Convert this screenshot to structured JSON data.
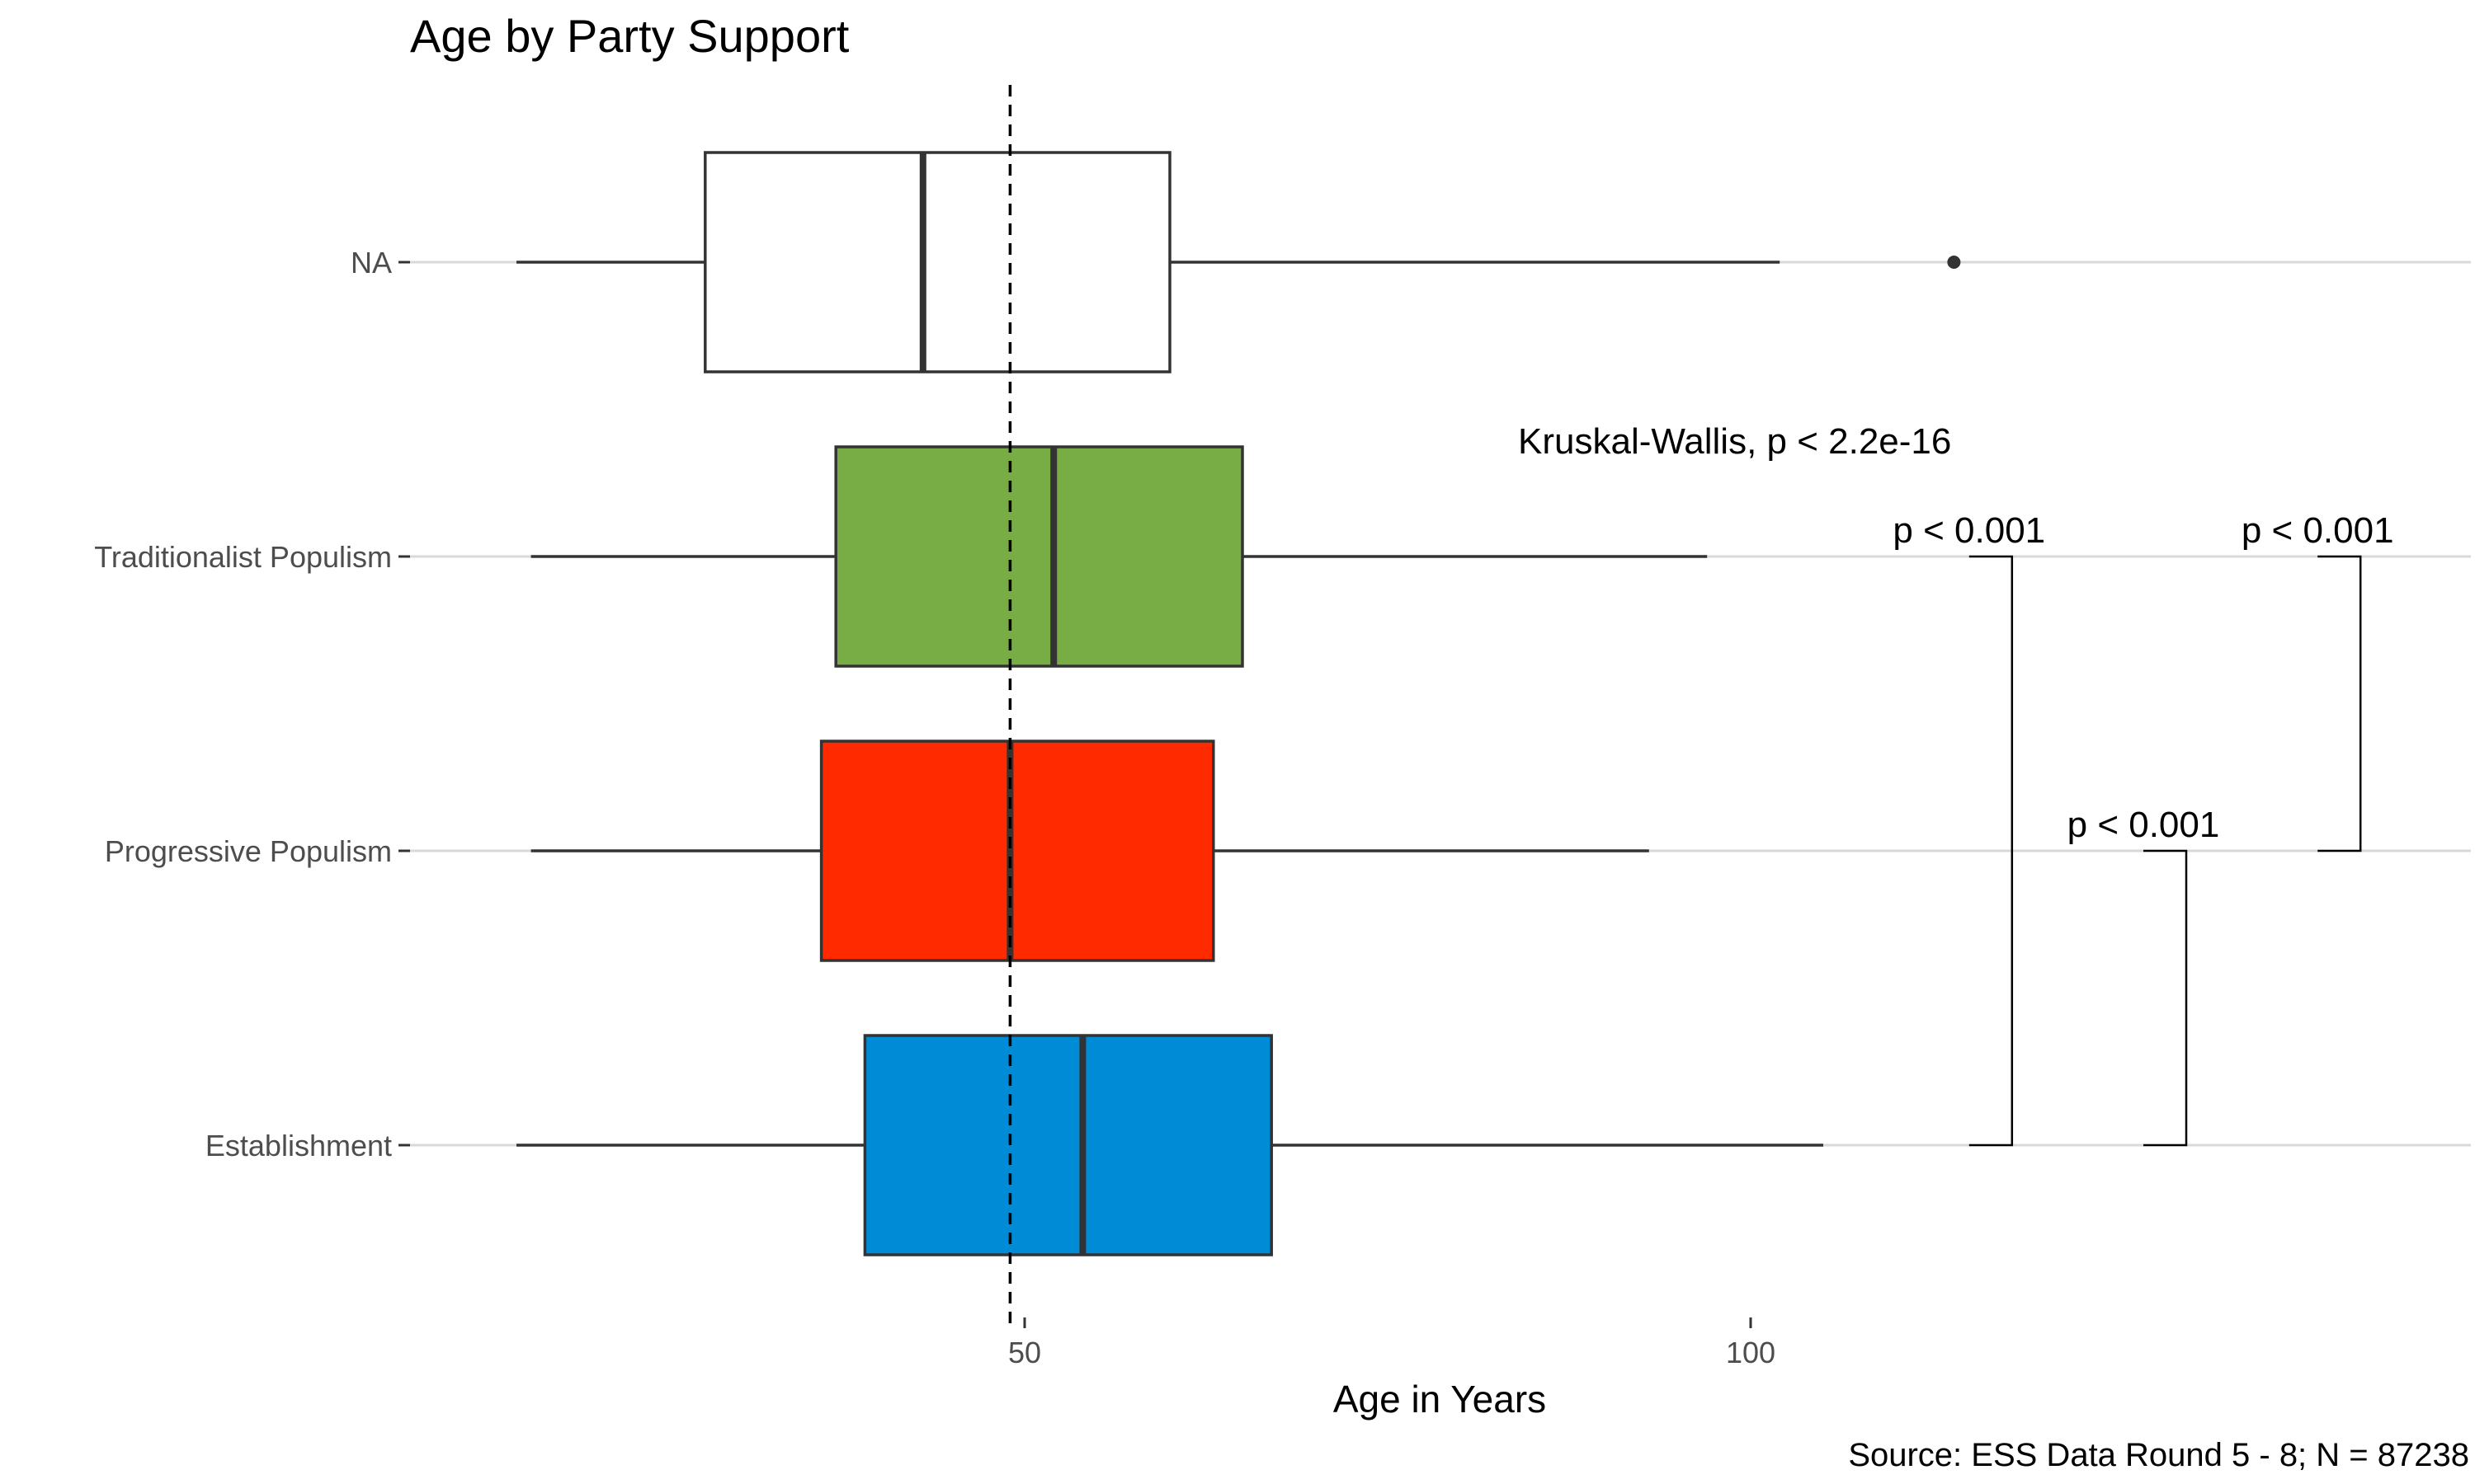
{
  "chart_data": {
    "type": "boxplot",
    "orientation": "horizontal",
    "title": "Age by Party Support",
    "xlabel": "Age in Years",
    "ylabel": "",
    "caption": "Source: ESS Data Round 5 - 8; N = 87238",
    "xlim": [
      0,
      150
    ],
    "x_ticks": [
      50,
      100
    ],
    "x_tick_labels": [
      "50",
      "100"
    ],
    "reference_line": {
      "x": 49,
      "style": "dashed"
    },
    "grid": "horizontal major lines only",
    "legend": "none",
    "categories": [
      "NA",
      "Traditionalist Populism",
      "Progressive Populism",
      "Establishment"
    ],
    "boxes": [
      {
        "category": "NA",
        "whisker_low": 15,
        "q1": 28,
        "median": 43,
        "q3": 60,
        "whisker_high": 102,
        "outliers": [
          114
        ],
        "fill": "#ffffff"
      },
      {
        "category": "Traditionalist Populism",
        "whisker_low": 16,
        "q1": 37,
        "median": 52,
        "q3": 65,
        "whisker_high": 97,
        "outliers": [],
        "fill": "#78AC44"
      },
      {
        "category": "Progressive Populism",
        "whisker_low": 16,
        "q1": 36,
        "median": 49,
        "q3": 63,
        "whisker_high": 93,
        "outliers": [],
        "fill": "#FF2A00"
      },
      {
        "category": "Establishment",
        "whisker_low": 15,
        "q1": 39,
        "median": 54,
        "q3": 67,
        "whisker_high": 105,
        "outliers": [],
        "fill": "#008BD6"
      }
    ],
    "test_label": "Kruskal-Wallis, p < 2.2e-16",
    "comparisons": [
      {
        "group1": "Traditionalist Populism",
        "group2": "Establishment",
        "label": "p < 0.001",
        "x": 118
      },
      {
        "group1": "Progressive Populism",
        "group2": "Establishment",
        "label": "p < 0.001",
        "x": 130
      },
      {
        "group1": "Traditionalist Populism",
        "group2": "Progressive Populism",
        "label": "p < 0.001",
        "x": 142
      }
    ]
  }
}
